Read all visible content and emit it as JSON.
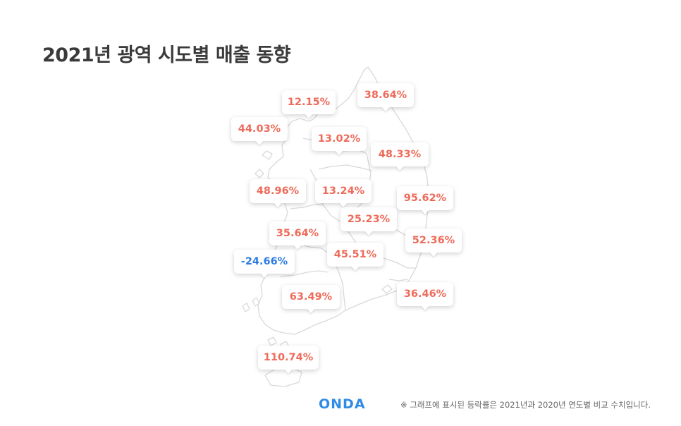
{
  "title": "2021년 광역 시도별 매출 동향",
  "logo": "ONDA",
  "footnote": "※ 그래프에 표시된 등락률은 2021년과 2020년 연도별 비교 수치입니다.",
  "colors": {
    "positive": "#ee6b5a",
    "negative": "#2f7de1",
    "title": "#3a3a3a",
    "logo": "#2f8be6"
  },
  "chart_data": {
    "type": "map",
    "unit": "%",
    "labels": [
      "12.15%",
      "38.64%",
      "44.03%",
      "13.02%",
      "48.33%",
      "48.96%",
      "13.24%",
      "95.62%",
      "25.23%",
      "35.64%",
      "52.36%",
      "-24.66%",
      "45.51%",
      "63.49%",
      "36.46%",
      "110.74%"
    ],
    "values": [
      12.15,
      38.64,
      44.03,
      13.02,
      48.33,
      48.96,
      13.24,
      95.62,
      25.23,
      35.64,
      52.36,
      -24.66,
      45.51,
      63.49,
      36.46,
      110.74
    ]
  }
}
